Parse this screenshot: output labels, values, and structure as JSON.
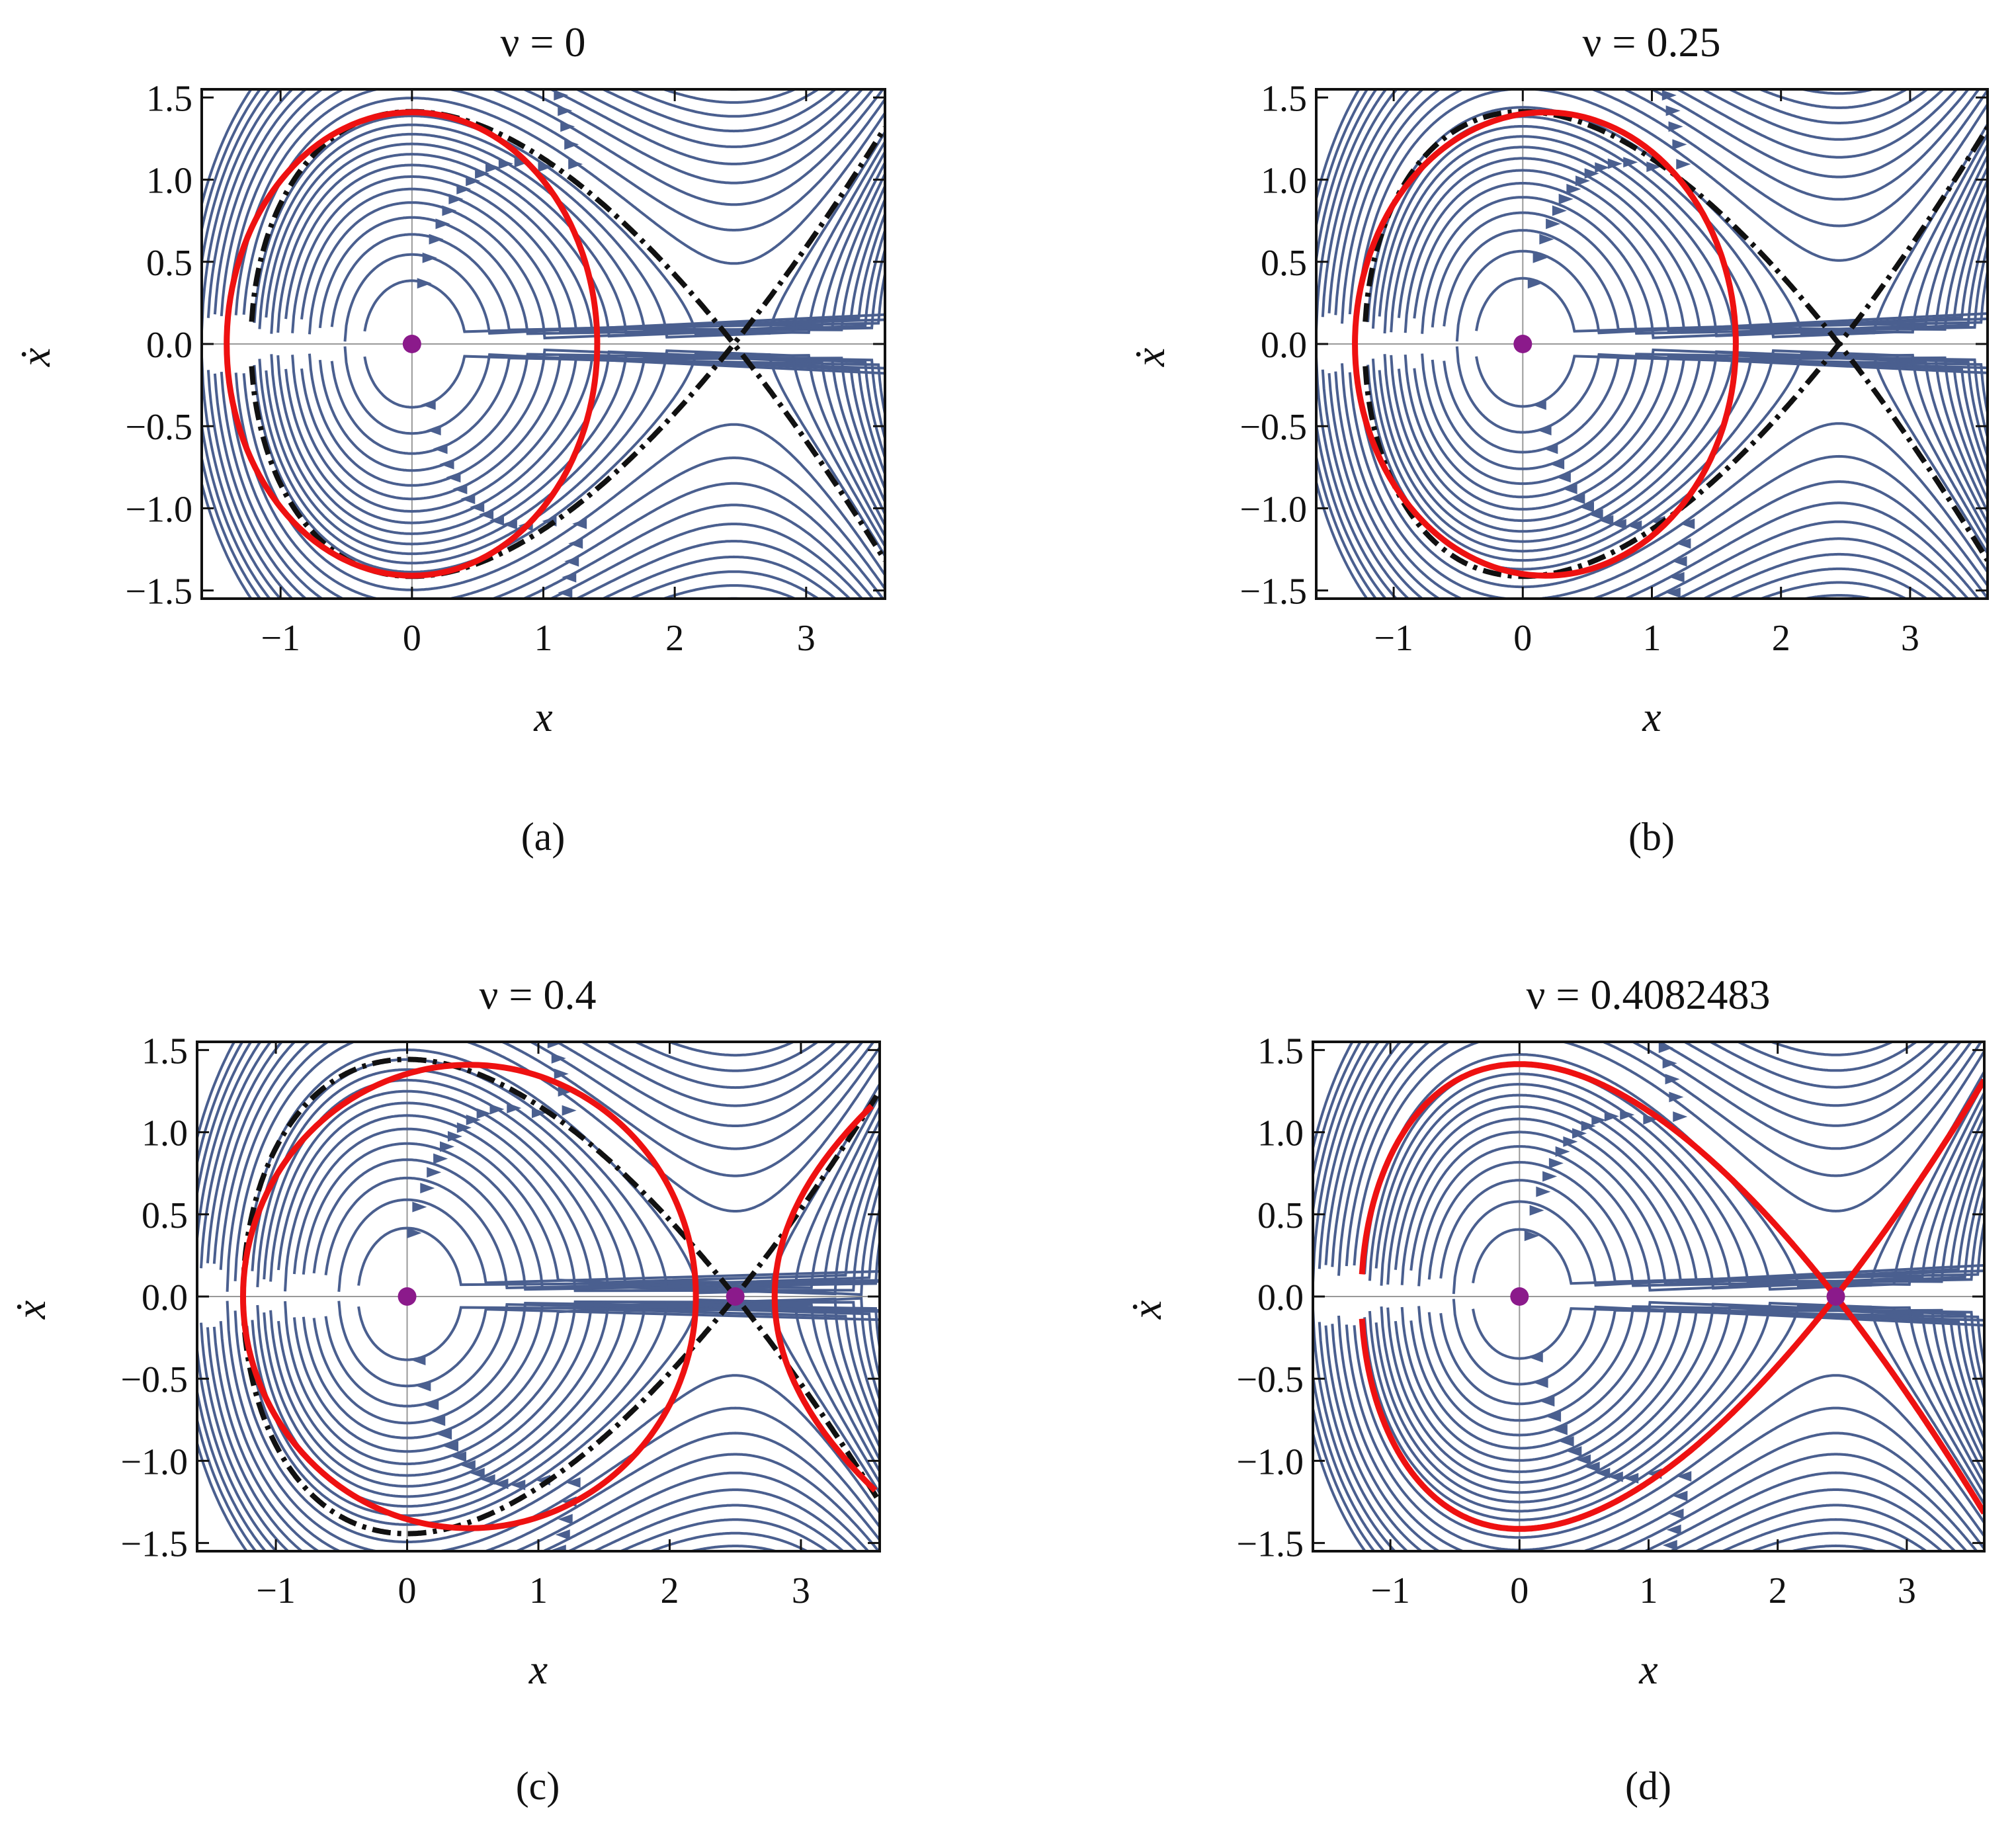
{
  "chart_data": [
    {
      "type": "phase-portrait",
      "title": "ν = 0",
      "nu": 0,
      "caption": "(a)",
      "xlabel": "x",
      "ylabel": "ẋ",
      "xlim": [
        -1.6,
        3.6
      ],
      "ylim": [
        -1.55,
        1.55
      ],
      "xticks": [
        -1,
        0,
        1,
        2,
        3
      ],
      "yticks": [
        -1.5,
        -1.0,
        -0.5,
        0.0,
        0.5,
        1.0,
        1.5
      ],
      "fixed_points": [
        {
          "x": 0,
          "y": 0
        }
      ],
      "red_curve": {
        "x_left": -1.41,
        "x_right": 1.41,
        "y_top": 1.41
      },
      "dashed_separatrix": {
        "x_saddle": 2.45,
        "x_left": -1.22,
        "y_top": 1.41,
        "y_end": 1.18
      },
      "stream_color": "#4a5f8f",
      "curve_color": "#ee1111",
      "dash_color": "#111111"
    },
    {
      "type": "phase-portrait",
      "title": "ν = 0.25",
      "nu": 0.25,
      "caption": "(b)",
      "xlabel": "x",
      "ylabel": "ẋ",
      "xlim": [
        -1.6,
        3.6
      ],
      "ylim": [
        -1.55,
        1.55
      ],
      "xticks": [
        -1,
        0,
        1,
        2,
        3
      ],
      "yticks": [
        -1.5,
        -1.0,
        -0.5,
        0.0,
        0.5,
        1.0,
        1.5
      ],
      "fixed_points": [
        {
          "x": 0,
          "y": 0
        }
      ],
      "red_curve": {
        "x_left": -1.3,
        "x_right": 1.65,
        "y_top": 1.41
      },
      "dashed_separatrix": {
        "x_saddle": 2.45,
        "x_left": -1.27,
        "y_top": 1.41,
        "y_end": 1.18
      },
      "stream_color": "#4a5f8f",
      "curve_color": "#ee1111",
      "dash_color": "#111111"
    },
    {
      "type": "phase-portrait",
      "title": "ν = 0.4",
      "nu": 0.4,
      "caption": "(c)",
      "xlabel": "x",
      "ylabel": "ẋ",
      "xlim": [
        -1.6,
        3.6
      ],
      "ylim": [
        -1.55,
        1.55
      ],
      "xticks": [
        -1,
        0,
        1,
        2,
        3
      ],
      "yticks": [
        -1.5,
        -1.0,
        -0.5,
        0.0,
        0.5,
        1.0,
        1.5
      ],
      "fixed_points": [
        {
          "x": 0,
          "y": 0
        },
        {
          "x": 2.5,
          "y": 0
        }
      ],
      "red_curve": {
        "x_left": -1.25,
        "x_right": 2.2,
        "y_top": 1.41,
        "branch_x": 2.8
      },
      "dashed_separatrix": {
        "x_saddle": 2.5,
        "x_left": -1.27,
        "y_top": 1.41,
        "y_end": 1.18
      },
      "stream_color": "#4a5f8f",
      "curve_color": "#ee1111",
      "dash_color": "#111111"
    },
    {
      "type": "phase-portrait",
      "title": "ν = 0.4082483",
      "nu": 0.4082483,
      "caption": "(d)",
      "xlabel": "x",
      "ylabel": "ẋ",
      "xlim": [
        -1.6,
        3.6
      ],
      "ylim": [
        -1.55,
        1.55
      ],
      "xticks": [
        -1,
        0,
        1,
        2,
        3
      ],
      "yticks": [
        -1.5,
        -1.0,
        -0.5,
        0.0,
        0.5,
        1.0,
        1.5
      ],
      "fixed_points": [
        {
          "x": 0,
          "y": 0
        },
        {
          "x": 2.45,
          "y": 0
        }
      ],
      "red_curve": {
        "x_left": -1.27,
        "x_saddle": 2.45,
        "y_top": 1.41,
        "y_end": 1.18
      },
      "stream_color": "#4a5f8f",
      "curve_color": "#ee1111",
      "dash_color": "#111111"
    }
  ]
}
